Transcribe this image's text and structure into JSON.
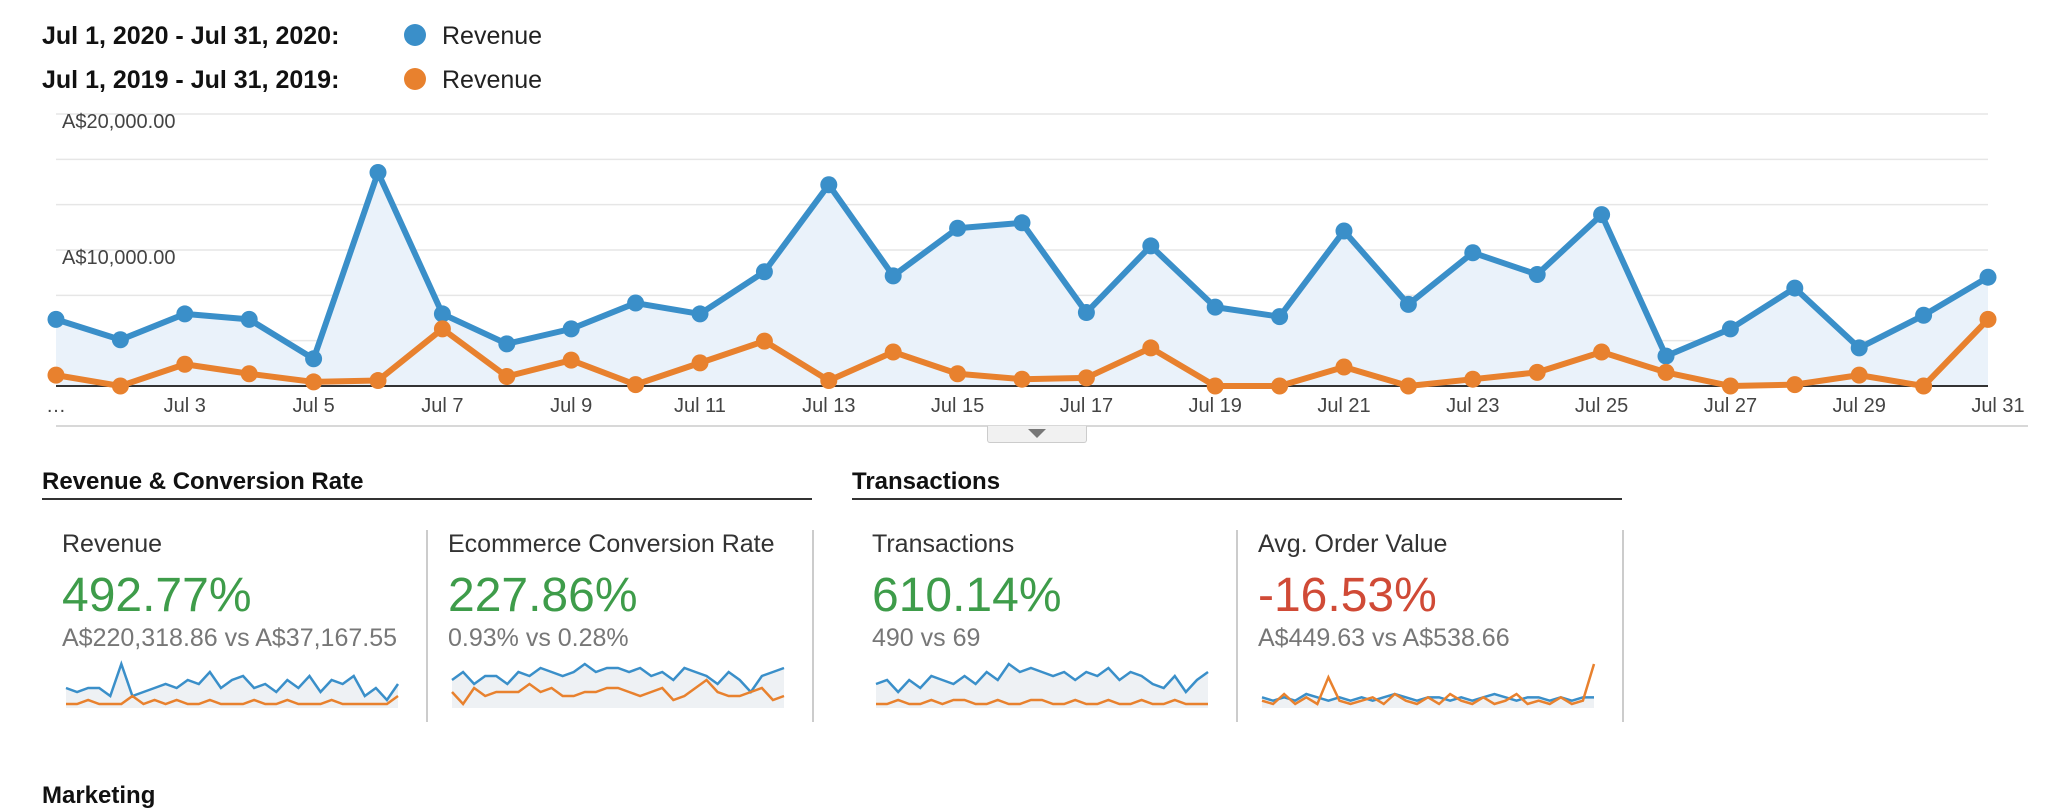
{
  "legend": [
    {
      "range": "Jul 1, 2020 - Jul 31, 2020:",
      "name": "Revenue",
      "color": "#3a8fc9"
    },
    {
      "range": "Jul 1, 2019 - Jul 31, 2019:",
      "name": "Revenue",
      "color": "#e8812e"
    }
  ],
  "chart_data": {
    "type": "line",
    "x": [
      1,
      2,
      3,
      4,
      5,
      6,
      7,
      8,
      9,
      10,
      11,
      12,
      13,
      14,
      15,
      16,
      17,
      18,
      19,
      20,
      21,
      22,
      23,
      24,
      25,
      26,
      27,
      28,
      29,
      30,
      31
    ],
    "x_tick_labels": [
      "…",
      "Jul 3",
      "Jul 5",
      "Jul 7",
      "Jul 9",
      "Jul 11",
      "Jul 13",
      "Jul 15",
      "Jul 17",
      "Jul 19",
      "Jul 21",
      "Jul 23",
      "Jul 25",
      "Jul 27",
      "Jul 29",
      "Jul 31"
    ],
    "y_tick_labels": [
      "A$20,000.00",
      "A$10,000.00"
    ],
    "ylim": [
      0,
      20000
    ],
    "grid": true,
    "series": [
      {
        "name": "Revenue",
        "color": "#3a8fc9",
        "fill": "#eaf2fa",
        "values": [
          4900,
          3400,
          5300,
          4900,
          2000,
          15700,
          5300,
          3100,
          4200,
          6100,
          5300,
          8400,
          14800,
          8100,
          11600,
          12000,
          5400,
          10300,
          5800,
          5100,
          11400,
          6000,
          9800,
          8200,
          12600,
          2200,
          4200,
          7200,
          2800,
          5200,
          8000
        ]
      },
      {
        "name": "Revenue",
        "color": "#e8812e",
        "values": [
          800,
          0,
          1600,
          900,
          300,
          400,
          4200,
          700,
          1900,
          100,
          1700,
          3300,
          400,
          2500,
          900,
          500,
          600,
          2800,
          0,
          0,
          1400,
          0,
          500,
          1000,
          2500,
          1000,
          0,
          100,
          800,
          0,
          4900
        ]
      }
    ]
  },
  "sections": {
    "revenue_conversion": "Revenue & Conversion Rate",
    "transactions": "Transactions",
    "marketing": "Marketing"
  },
  "cards": [
    {
      "label": "Revenue",
      "pct": "492.77%",
      "pct_color": "#3e9c4a",
      "comparison": "A$220,318.86 vs A$37,167.55",
      "spark_current": [
        5,
        4,
        5,
        5,
        3,
        11,
        3,
        4,
        5,
        6,
        5,
        7,
        6,
        9,
        5,
        7,
        8,
        5,
        6,
        4,
        7,
        5,
        8,
        4,
        7,
        6,
        8,
        3,
        5,
        2,
        6
      ],
      "spark_previous": [
        1,
        1,
        2,
        1,
        1,
        1,
        3,
        1,
        2,
        1,
        2,
        1,
        1,
        2,
        1,
        1,
        1,
        2,
        1,
        1,
        2,
        1,
        1,
        1,
        2,
        1,
        1,
        1,
        1,
        1,
        3
      ]
    },
    {
      "label": "Ecommerce Conversion Rate",
      "pct": "227.86%",
      "pct_color": "#3e9c4a",
      "comparison": "0.93% vs 0.28%",
      "spark_current": [
        6,
        8,
        5,
        7,
        7,
        5,
        8,
        7,
        9,
        8,
        7,
        8,
        10,
        8,
        9,
        9,
        8,
        9,
        7,
        8,
        6,
        9,
        8,
        7,
        5,
        8,
        6,
        3,
        7,
        8,
        9
      ],
      "spark_previous": [
        3,
        0,
        4,
        2,
        3,
        3,
        3,
        5,
        3,
        4,
        2,
        2,
        3,
        3,
        4,
        4,
        3,
        2,
        3,
        4,
        1,
        2,
        4,
        6,
        3,
        2,
        2,
        3,
        4,
        1,
        2
      ]
    },
    {
      "label": "Transactions",
      "pct": "610.14%",
      "pct_color": "#3e9c4a",
      "comparison": "490 vs 69",
      "spark_current": [
        6,
        7,
        4,
        7,
        5,
        8,
        7,
        6,
        8,
        6,
        9,
        7,
        11,
        9,
        10,
        9,
        8,
        9,
        7,
        9,
        8,
        10,
        7,
        9,
        8,
        6,
        5,
        8,
        4,
        7,
        9
      ],
      "spark_previous": [
        1,
        1,
        2,
        1,
        1,
        2,
        1,
        2,
        2,
        1,
        1,
        2,
        1,
        1,
        2,
        2,
        1,
        1,
        2,
        1,
        1,
        2,
        1,
        1,
        2,
        1,
        1,
        2,
        1,
        1,
        1
      ]
    },
    {
      "label": "Avg. Order Value",
      "pct": "-16.53%",
      "pct_color": "#d04a36",
      "comparison": "A$449.63 vs A$538.66",
      "spark_current": [
        4,
        3,
        4,
        3,
        5,
        4,
        3,
        4,
        3,
        4,
        3,
        4,
        5,
        4,
        3,
        4,
        4,
        3,
        4,
        3,
        4,
        5,
        4,
        3,
        4,
        4,
        3,
        4,
        3,
        4,
        4
      ],
      "spark_previous": [
        3,
        2,
        5,
        2,
        4,
        2,
        10,
        3,
        2,
        3,
        4,
        2,
        5,
        3,
        2,
        4,
        2,
        5,
        3,
        2,
        4,
        2,
        3,
        5,
        2,
        3,
        2,
        4,
        2,
        3,
        14
      ]
    }
  ]
}
